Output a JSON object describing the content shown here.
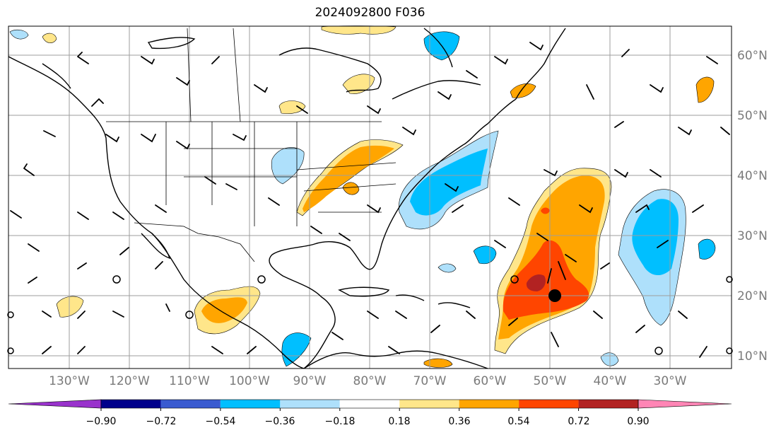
{
  "title": "2024092800 F036",
  "lat_labels": [
    "60°N",
    "50°N",
    "40°N",
    "30°N",
    "20°N",
    "10°N"
  ],
  "lon_labels": [
    "130°W",
    "120°W",
    "110°W",
    "100°W",
    "90°W",
    "80°W",
    "70°W",
    "60°W",
    "50°W",
    "40°W",
    "30°W"
  ],
  "colorbar": {
    "ticks": [
      "−0.90",
      "−0.72",
      "−0.54",
      "−0.36",
      "−0.18",
      "0.18",
      "0.36",
      "0.54",
      "0.72",
      "0.90"
    ],
    "colors": [
      "#9932cc",
      "#00008b",
      "#3a5bd0",
      "#00bfff",
      "#aee0fb",
      "#ffffff",
      "#ffe68a",
      "#ffa500",
      "#ff4500",
      "#b22222",
      "#ff85b5"
    ]
  },
  "colors": {
    "grid": "#9e9e9e",
    "coast": "#000000",
    "label_gray": "#7a7a7a"
  },
  "features": {
    "marker": "filled black circle near 20°N 50°W"
  }
}
